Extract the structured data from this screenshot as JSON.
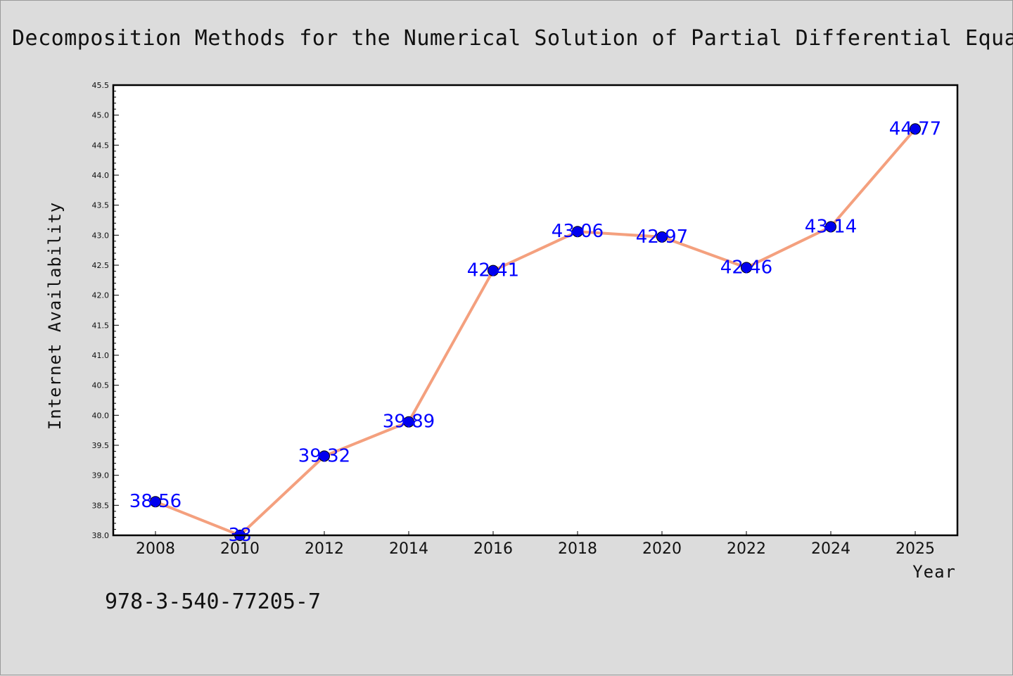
{
  "chart_data": {
    "type": "line",
    "title": "Domain Decomposition Methods for the Numerical Solution of Partial Differential Equations",
    "xlabel": "Year",
    "ylabel": "Internet Availability",
    "x": [
      "2008",
      "2010",
      "2012",
      "2014",
      "2016",
      "2018",
      "2020",
      "2022",
      "2024",
      "2025"
    ],
    "series": [
      {
        "values": [
          38.56,
          38.0,
          39.32,
          39.89,
          42.41,
          43.06,
          42.97,
          42.46,
          43.14,
          44.77
        ],
        "labels": [
          "38.56",
          "38",
          "39.32",
          "39.89",
          "42.41",
          "43.06",
          "42.97",
          "42.46",
          "43.14",
          "44.77"
        ],
        "line_color": "#f4a07e",
        "marker_color": "#0000ee"
      }
    ],
    "ylim": [
      38.0,
      45.5
    ],
    "yticks": [
      "38.0",
      "38.5",
      "39.0",
      "39.5",
      "40.0",
      "40.5",
      "41.0",
      "41.5",
      "42.0",
      "42.5",
      "43.0",
      "43.5",
      "44.0",
      "44.5",
      "45.0",
      "45.5"
    ],
    "grid": false,
    "legend": "none"
  },
  "footer": {
    "isbn": "978-3-540-77205-7"
  },
  "colors": {
    "background": "#dcdcdc",
    "plot_background": "#ffffff",
    "line": "#f4a07e",
    "marker": "#0000ee",
    "data_label": "#0000ff"
  }
}
